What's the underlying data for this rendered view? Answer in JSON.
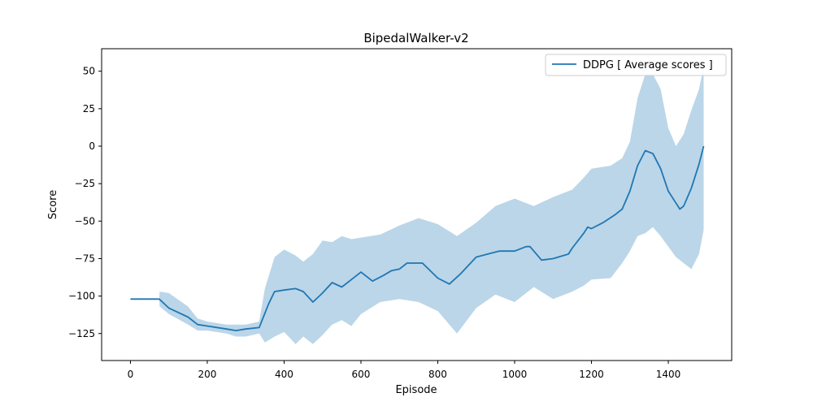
{
  "chart_data": {
    "type": "line",
    "title": "BipedalWalker-v2",
    "xlabel": "Episode",
    "ylabel": "Score",
    "xlim": [
      -75,
      1565
    ],
    "ylim": [
      -143,
      65
    ],
    "xticks": [
      0,
      200,
      400,
      600,
      800,
      1000,
      1200,
      1400
    ],
    "yticks": [
      -125,
      -100,
      -75,
      -50,
      -25,
      0,
      25,
      50
    ],
    "ytick_labels": [
      "−125",
      "−100",
      "−75",
      "−50",
      "−25",
      "0",
      "25",
      "50"
    ],
    "grid": false,
    "legend": {
      "position": "top-right",
      "entries": [
        "DDPG [ Average scores ]"
      ]
    },
    "colors": {
      "line": "#1f77b4",
      "band": "#1f77b4"
    },
    "series": [
      {
        "name": "DDPG [ Average scores ]",
        "x": [
          0,
          10,
          75,
          100,
          150,
          175,
          200,
          250,
          275,
          300,
          335,
          360,
          375,
          400,
          430,
          450,
          475,
          500,
          525,
          550,
          575,
          600,
          630,
          660,
          680,
          700,
          720,
          760,
          800,
          830,
          860,
          900,
          930,
          960,
          1000,
          1030,
          1040,
          1070,
          1100,
          1140,
          1150,
          1180,
          1190,
          1200,
          1230,
          1260,
          1280,
          1300,
          1320,
          1340,
          1360,
          1380,
          1400,
          1420,
          1430,
          1440,
          1460,
          1480,
          1492
        ],
        "y": [
          -102,
          -102,
          -102,
          -108,
          -114,
          -119,
          -120,
          -122,
          -123,
          -122,
          -121,
          -105,
          -97,
          -96,
          -95,
          -97,
          -104,
          -98,
          -91,
          -94,
          -89,
          -84,
          -90,
          -86,
          -83,
          -82,
          -78,
          -78,
          -88,
          -92,
          -85,
          -74,
          -72,
          -70,
          -70,
          -67,
          -67,
          -76,
          -75,
          -72,
          -68,
          -58,
          -54,
          -55,
          -51,
          -46,
          -42,
          -30,
          -13,
          -3,
          -5,
          -15,
          -30,
          -38,
          -42,
          -40,
          -28,
          -12,
          0
        ]
      }
    ],
    "band": {
      "x": [
        0,
        10,
        75,
        76,
        100,
        150,
        175,
        200,
        250,
        275,
        300,
        335,
        350,
        375,
        400,
        430,
        450,
        475,
        500,
        525,
        550,
        575,
        600,
        650,
        700,
        750,
        800,
        850,
        900,
        950,
        1000,
        1050,
        1100,
        1150,
        1180,
        1200,
        1250,
        1280,
        1300,
        1320,
        1340,
        1360,
        1380,
        1400,
        1420,
        1440,
        1460,
        1480,
        1492
      ],
      "upper": [
        -102,
        -102,
        -102,
        -97,
        -98,
        -107,
        -115,
        -117,
        -119,
        -119,
        -119,
        -117,
        -95,
        -74,
        -69,
        -73,
        -77,
        -72,
        -63,
        -64,
        -60,
        -62,
        -61,
        -59,
        -53,
        -48,
        -52,
        -60,
        -51,
        -40,
        -35,
        -40,
        -34,
        -29,
        -21,
        -15,
        -13,
        -8,
        3,
        32,
        48,
        48,
        38,
        12,
        0,
        8,
        24,
        38,
        53
      ],
      "lower": [
        -102,
        -102,
        -102,
        -107,
        -112,
        -119,
        -123,
        -123,
        -125,
        -127,
        -127,
        -125,
        -131,
        -127,
        -124,
        -132,
        -127,
        -132,
        -126,
        -119,
        -116,
        -120,
        -112,
        -104,
        -102,
        -104,
        -110,
        -125,
        -108,
        -99,
        -104,
        -94,
        -102,
        -97,
        -93,
        -89,
        -88,
        -78,
        -70,
        -60,
        -58,
        -54,
        -60,
        -67,
        -74,
        -78,
        -82,
        -72,
        -56
      ]
    }
  }
}
